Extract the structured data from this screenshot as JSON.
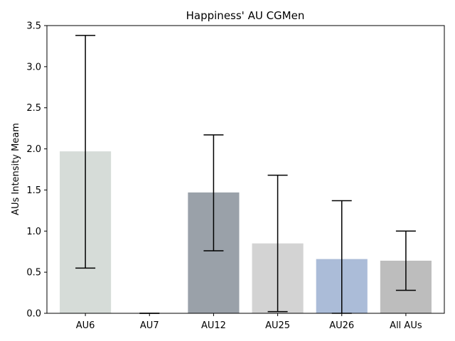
{
  "chart_data": {
    "type": "bar",
    "title": "Happiness' AU CGMen",
    "xlabel": "",
    "ylabel": "AUs Intensity Meam",
    "categories": [
      "AU6",
      "AU7",
      "AU12",
      "AU25",
      "AU26",
      "All AUs"
    ],
    "values": [
      1.97,
      0.0,
      1.47,
      0.85,
      0.66,
      0.64
    ],
    "error_low": [
      0.55,
      0.0,
      0.76,
      0.02,
      0.0,
      0.28
    ],
    "error_high": [
      3.38,
      0.0,
      2.17,
      1.68,
      1.37,
      1.0
    ],
    "colors": [
      "#d6dcd8",
      "#d6dcd8",
      "#9aa1a9",
      "#d3d3d3",
      "#abbcd8",
      "#bdbdbd"
    ],
    "ylim": [
      0,
      3.5
    ],
    "yticks": [
      "0.0",
      "0.5",
      "1.0",
      "1.5",
      "2.0",
      "2.5",
      "3.0",
      "3.5"
    ],
    "grid": false
  }
}
